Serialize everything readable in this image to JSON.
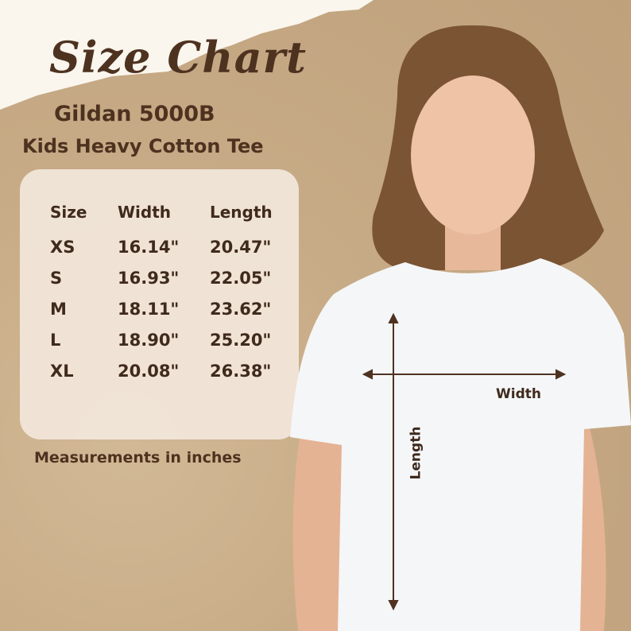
{
  "title": "Size Chart",
  "product_model": "Gildan 5000B",
  "product_name": "Kids Heavy Cotton Tee",
  "table": {
    "headers": [
      "Size",
      "Width",
      "Length"
    ],
    "rows": [
      [
        "XS",
        "16.14\"",
        "20.47\""
      ],
      [
        "S",
        "16.93\"",
        "22.05\""
      ],
      [
        "M",
        "18.11\"",
        "23.62\""
      ],
      [
        "L",
        "18.90\"",
        "25.20\""
      ],
      [
        "XL",
        "20.08\"",
        "26.38\""
      ]
    ]
  },
  "note": "Measurements in inches",
  "diagram": {
    "width_label": "Width",
    "length_label": "Length"
  },
  "colors": {
    "text": "#4e3220",
    "background": "#c9ae8c",
    "card": "#f1e6da"
  }
}
